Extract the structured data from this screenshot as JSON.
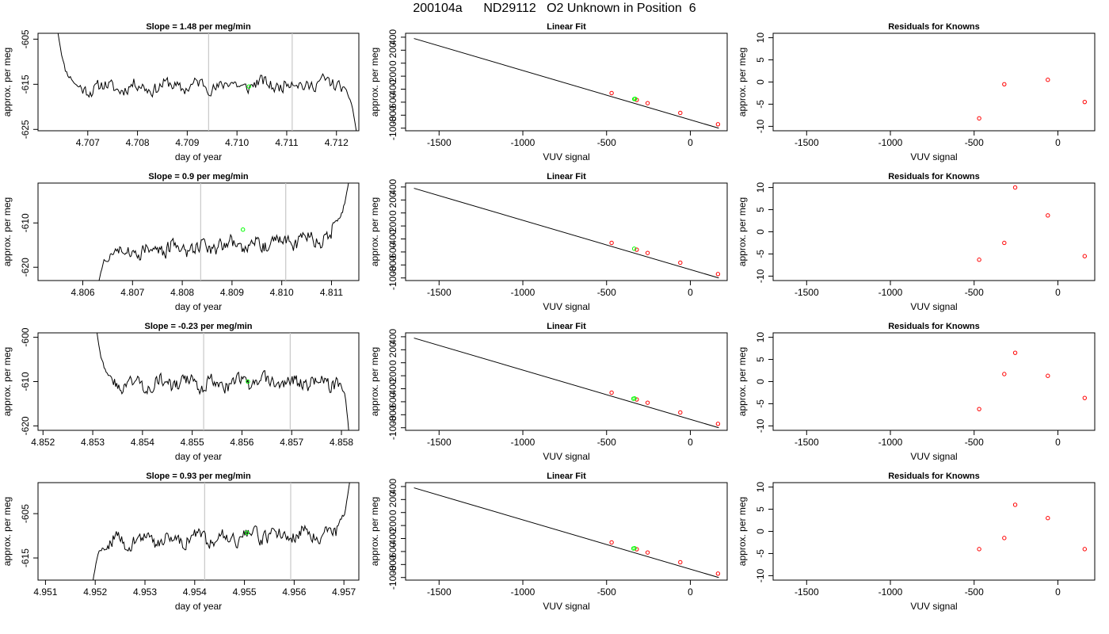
{
  "figure": {
    "title": "200104a      ND29112   O2 Unknown in Position  6",
    "colors": {
      "trace": "#000000",
      "guide_line": "#c8c8c8",
      "unknown": "#00ff00",
      "known": "#ff0000",
      "frame": "#000000"
    }
  },
  "chart_data": [
    {
      "type": "line",
      "row": 1,
      "panel": "time-series",
      "title": "Slope =  1.48  per meg/min",
      "xlabel": "day of year",
      "ylabel": "approx. per meg",
      "xlim": [
        4.706,
        4.71245
      ],
      "ylim": [
        -625.3,
        -603.7
      ],
      "xticks": [
        "4.707",
        "4.708",
        "4.709",
        "4.710",
        "4.711",
        "4.712"
      ],
      "yticks": [
        "-605",
        "-615",
        "-625"
      ],
      "guide_lines_x": [
        4.70943,
        4.71111
      ],
      "unknown_point": {
        "x": 4.71024,
        "y": -615.5
      },
      "series": [
        {
          "x_start": 4.7064,
          "x_end": 4.7124,
          "n": 241,
          "seed": 11,
          "baseline": -615.3,
          "trend": 1.2,
          "amp": 1.3,
          "edges": [
            {
              "x": 4.7064,
              "y": -603.5
            },
            {
              "x": 4.7066,
              "y": -611.0
            },
            {
              "x": 4.70678,
              "y": -615.5
            },
            {
              "x": 4.7121,
              "y": -615.0
            },
            {
              "x": 4.71228,
              "y": -621.0
            },
            {
              "x": 4.7124,
              "y": -625.5
            }
          ]
        }
      ]
    },
    {
      "type": "line",
      "row": 1,
      "panel": "linear-fit",
      "title": "Linear Fit",
      "xlabel": "VUV signal",
      "ylabel": "approx. per meg",
      "xlim": [
        -1700,
        220
      ],
      "ylim": [
        -1040,
        460
      ],
      "xticks": [
        "-1500",
        "-1000",
        "-500",
        "0"
      ],
      "yticks": [
        "-1000",
        "-800",
        "-600",
        "-400",
        "-200",
        "0",
        "200",
        "400"
      ],
      "fit_line": {
        "x": [
          -1650,
          170
        ],
        "y": [
          380,
          -1000
        ]
      },
      "knowns": {
        "x": [
          -470,
          -320,
          -255,
          -60,
          165
        ],
        "y": [
          -460,
          -565,
          -615,
          -765,
          -940
        ]
      },
      "unknowns": {
        "x": [
          -335,
          -330
        ],
        "y": [
          -552,
          -548
        ]
      }
    },
    {
      "type": "scatter",
      "row": 1,
      "panel": "residuals",
      "title": "Residuals for Knowns",
      "xlabel": "VUV signal",
      "ylabel": "approx. per meg",
      "xlim": [
        -1700,
        220
      ],
      "ylim": [
        -11,
        11
      ],
      "xticks": [
        "-1500",
        "-1000",
        "-500",
        "0"
      ],
      "yticks": [
        "-10",
        "-5",
        "0",
        "5",
        "10"
      ],
      "x": [
        -470,
        -320,
        -60,
        160
      ],
      "y": [
        -8.2,
        -0.5,
        0.5,
        -4.5
      ]
    },
    {
      "type": "line",
      "row": 2,
      "panel": "time-series",
      "title": "Slope =  0.9  per meg/min",
      "xlabel": "day of year",
      "ylabel": "approx. per meg",
      "xlim": [
        4.8051,
        4.81155
      ],
      "ylim": [
        -623,
        -601
      ],
      "xticks": [
        "4.806",
        "4.807",
        "4.808",
        "4.809",
        "4.810",
        "4.811"
      ],
      "yticks": [
        "-610",
        "-620"
      ],
      "guide_lines_x": [
        4.80837,
        4.81008
      ],
      "unknown_point": {
        "x": 4.80922,
        "y": -611.5
      },
      "series": [
        {
          "x_start": 4.8063,
          "x_end": 4.81135,
          "n": 241,
          "seed": 27,
          "baseline": -615.0,
          "trend": 3.6,
          "amp": 1.5,
          "edges": [
            {
              "x": 4.8063,
              "y": -624.5
            },
            {
              "x": 4.80645,
              "y": -619.5
            },
            {
              "x": 4.80662,
              "y": -616.0
            },
            {
              "x": 4.811,
              "y": -610.0
            },
            {
              "x": 4.81118,
              "y": -605.0
            },
            {
              "x": 4.81135,
              "y": -600.5
            }
          ]
        }
      ]
    },
    {
      "type": "line",
      "row": 2,
      "panel": "linear-fit",
      "title": "Linear Fit",
      "xlabel": "VUV signal",
      "ylabel": "approx. per meg",
      "xlim": [
        -1700,
        220
      ],
      "ylim": [
        -1040,
        460
      ],
      "xticks": [
        "-1500",
        "-1000",
        "-500",
        "0"
      ],
      "yticks": [
        "-1000",
        "-800",
        "-600",
        "-400",
        "-200",
        "0",
        "200",
        "400"
      ],
      "fit_line": {
        "x": [
          -1650,
          170
        ],
        "y": [
          380,
          -1000
        ]
      },
      "knowns": {
        "x": [
          -470,
          -320,
          -255,
          -60,
          165
        ],
        "y": [
          -460,
          -565,
          -615,
          -765,
          -940
        ]
      },
      "unknowns": {
        "x": [
          -335
        ],
        "y": [
          -550
        ]
      }
    },
    {
      "type": "scatter",
      "row": 2,
      "panel": "residuals",
      "title": "Residuals for Knowns",
      "xlabel": "VUV signal",
      "ylabel": "approx. per meg",
      "xlim": [
        -1700,
        220
      ],
      "ylim": [
        -11,
        11
      ],
      "xticks": [
        "-1500",
        "-1000",
        "-500",
        "0"
      ],
      "yticks": [
        "-10",
        "-5",
        "0",
        "5",
        "10"
      ],
      "x": [
        -470,
        -320,
        -255,
        -60,
        160
      ],
      "y": [
        -6.3,
        -2.5,
        10.0,
        3.7,
        -5.5
      ]
    },
    {
      "type": "line",
      "row": 3,
      "panel": "time-series",
      "title": "Slope =  -0.23  per meg/min",
      "xlabel": "day of year",
      "ylabel": "approx. per meg",
      "xlim": [
        4.8519,
        4.85835
      ],
      "ylim": [
        -621,
        -599
      ],
      "xticks": [
        "4.852",
        "4.853",
        "4.854",
        "4.855",
        "4.856",
        "4.857",
        "4.858"
      ],
      "yticks": [
        "-600",
        "-610",
        "-620"
      ],
      "guide_lines_x": [
        4.85523,
        4.85697
      ],
      "unknown_point": {
        "x": 4.85612,
        "y": -610.0
      },
      "series": [
        {
          "x_start": 4.85308,
          "x_end": 4.85815,
          "n": 241,
          "seed": 43,
          "baseline": -610.3,
          "trend": 0.4,
          "amp": 1.4,
          "edges": [
            {
              "x": 4.85308,
              "y": -598.5
            },
            {
              "x": 4.85322,
              "y": -604.0
            },
            {
              "x": 4.8534,
              "y": -610.0
            },
            {
              "x": 4.85795,
              "y": -610.0
            },
            {
              "x": 4.85806,
              "y": -615.0
            },
            {
              "x": 4.85815,
              "y": -621.5
            }
          ]
        }
      ]
    },
    {
      "type": "line",
      "row": 3,
      "panel": "linear-fit",
      "title": "Linear Fit",
      "xlabel": "VUV signal",
      "ylabel": "approx. per meg",
      "xlim": [
        -1700,
        220
      ],
      "ylim": [
        -1040,
        460
      ],
      "xticks": [
        "-1500",
        "-1000",
        "-500",
        "0"
      ],
      "yticks": [
        "-1000",
        "-800",
        "-600",
        "-400",
        "-200",
        "0",
        "200",
        "400"
      ],
      "fit_line": {
        "x": [
          -1650,
          170
        ],
        "y": [
          380,
          -1000
        ]
      },
      "knowns": {
        "x": [
          -470,
          -320,
          -255,
          -60,
          165
        ],
        "y": [
          -460,
          -565,
          -615,
          -765,
          -940
        ]
      },
      "unknowns": {
        "x": [
          -340,
          -333
        ],
        "y": [
          -553,
          -549
        ]
      }
    },
    {
      "type": "scatter",
      "row": 3,
      "panel": "residuals",
      "title": "Residuals for Knowns",
      "xlabel": "VUV signal",
      "ylabel": "approx. per meg",
      "xlim": [
        -1700,
        220
      ],
      "ylim": [
        -11,
        11
      ],
      "xticks": [
        "-1500",
        "-1000",
        "-500",
        "0"
      ],
      "yticks": [
        "-10",
        "-5",
        "0",
        "5",
        "10"
      ],
      "x": [
        -470,
        -320,
        -255,
        -60,
        160
      ],
      "y": [
        -6.2,
        1.7,
        6.5,
        1.3,
        -3.7
      ]
    },
    {
      "type": "line",
      "row": 4,
      "panel": "time-series",
      "title": "Slope =  0.93  per meg/min",
      "xlabel": "day of year",
      "ylabel": "approx. per meg",
      "xlim": [
        4.95085,
        4.9573
      ],
      "ylim": [
        -620,
        -598
      ],
      "xticks": [
        "4.951",
        "4.952",
        "4.953",
        "4.954",
        "4.955",
        "4.956",
        "4.957"
      ],
      "yticks": [
        "-605",
        "-615"
      ],
      "guide_lines_x": [
        4.9542,
        4.95593
      ],
      "unknown_point": {
        "x": 4.95505,
        "y": -609.3
      },
      "series": [
        {
          "x_start": 4.95195,
          "x_end": 4.95712,
          "n": 241,
          "seed": 59,
          "baseline": -610.3,
          "trend": 2.4,
          "amp": 1.4,
          "edges": [
            {
              "x": 4.95195,
              "y": -620.5
            },
            {
              "x": 4.95208,
              "y": -615.0
            },
            {
              "x": 4.95225,
              "y": -612.5
            },
            {
              "x": 4.95685,
              "y": -607.0
            },
            {
              "x": 4.957,
              "y": -602.0
            },
            {
              "x": 4.95712,
              "y": -597.5
            }
          ]
        }
      ]
    },
    {
      "type": "line",
      "row": 4,
      "panel": "linear-fit",
      "title": "Linear Fit",
      "xlabel": "VUV signal",
      "ylabel": "approx. per meg",
      "xlim": [
        -1700,
        220
      ],
      "ylim": [
        -1040,
        460
      ],
      "xticks": [
        "-1500",
        "-1000",
        "-500",
        "0"
      ],
      "yticks": [
        "-1000",
        "-800",
        "-600",
        "-400",
        "-200",
        "0",
        "200",
        "400"
      ],
      "fit_line": {
        "x": [
          -1650,
          170
        ],
        "y": [
          380,
          -1000
        ]
      },
      "knowns": {
        "x": [
          -470,
          -320,
          -255,
          -60,
          165
        ],
        "y": [
          -460,
          -565,
          -615,
          -765,
          -940
        ]
      },
      "unknowns": {
        "x": [
          -340,
          -333
        ],
        "y": [
          -553,
          -549
        ]
      }
    },
    {
      "type": "scatter",
      "row": 4,
      "panel": "residuals",
      "title": "Residuals for Knowns",
      "xlabel": "VUV signal",
      "ylabel": "approx. per meg",
      "xlim": [
        -1700,
        220
      ],
      "ylim": [
        -11,
        11
      ],
      "xticks": [
        "-1500",
        "-1000",
        "-500",
        "0"
      ],
      "yticks": [
        "-10",
        "-5",
        "0",
        "5",
        "10"
      ],
      "x": [
        -470,
        -320,
        -255,
        -60,
        160
      ],
      "y": [
        -4.0,
        -1.5,
        6.0,
        3.0,
        -4.0
      ]
    }
  ]
}
